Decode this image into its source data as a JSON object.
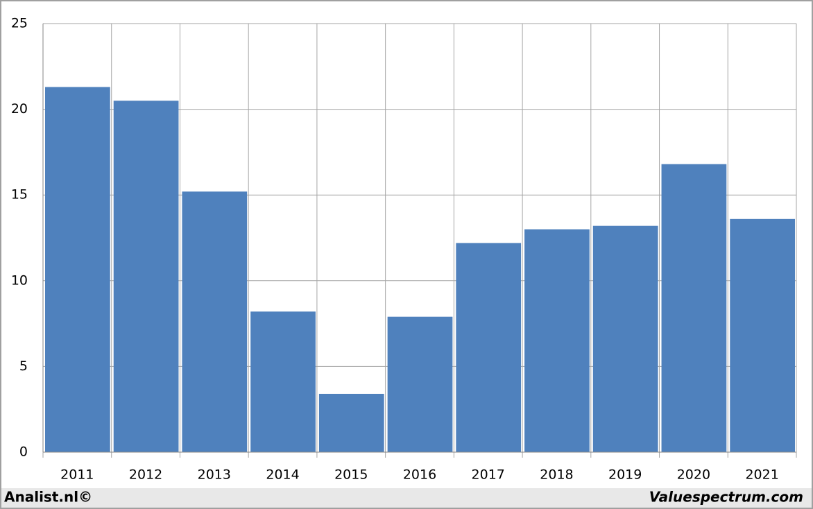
{
  "chart_data": {
    "type": "bar",
    "categories": [
      "2011",
      "2012",
      "2013",
      "2014",
      "2015",
      "2016",
      "2017",
      "2018",
      "2019",
      "2020",
      "2021"
    ],
    "values": [
      21.3,
      20.5,
      15.2,
      8.2,
      3.4,
      7.9,
      12.2,
      13.0,
      13.2,
      16.8,
      13.6
    ],
    "color": "#4f81bd",
    "ylim": [
      0,
      25
    ],
    "yticks": [
      0,
      5,
      10,
      15,
      20,
      25
    ],
    "grid": true
  },
  "footer": {
    "left": "Analist.nl©",
    "right": "Valuespectrum.com"
  }
}
